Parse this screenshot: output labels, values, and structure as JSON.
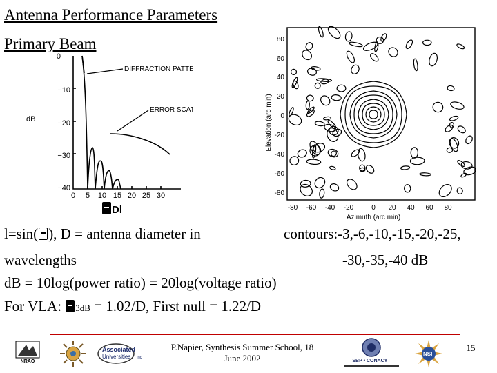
{
  "slide": {
    "title_line1": "Antenna Performance Parameters",
    "title_line2": "Primary Beam",
    "body_line1a": "l=sin(",
    "body_line1b": "), D = antenna diameter in",
    "body_line1c": "contours:-3,-6,-10,-15,-20,-25,",
    "body_line2a": "wavelengths",
    "body_line2b": "-30,-35,-40 dB",
    "body_line3": "dB = 10log(power ratio) = 20log(voltage ratio)",
    "body_line4a": "For VLA:",
    "body_line4b": "3dB",
    "body_line4c": "= 1.02/D, First null = 1.22/D",
    "plot_xlabel": "Dl"
  },
  "left_plot": {
    "ylabel": "dB",
    "yticks": [
      "0",
      "−10",
      "−20",
      "−30",
      "−40"
    ],
    "xticks": [
      "0",
      "5",
      "10",
      "15",
      "20",
      "25",
      "30"
    ],
    "annotation1": "DIFFRACTION PATTERN",
    "annotation2": "ERROR SCATTER PATTERN"
  },
  "right_plot": {
    "ylabel": "Elevation (arc min)",
    "xlabel": "Azimuth (arc min)",
    "yticks": [
      "80",
      "60",
      "40",
      "20",
      "0",
      "-20",
      "-40",
      "-60",
      "-80"
    ],
    "xticks": [
      "-80",
      "-60",
      "-40",
      "-20",
      "0",
      "20",
      "40",
      "60",
      "80"
    ]
  },
  "footer": {
    "credit_line1": "P.Napier, Synthesis Summer School, 18",
    "credit_line2": "June 2002",
    "page_number": "15",
    "logo_nrao": "NRAO",
    "logo_aui_line1": "Associated",
    "logo_aui_line2": "Universities",
    "logo_aui_suffix": "inc",
    "logo_crya": "SBP • CONACYT"
  }
}
